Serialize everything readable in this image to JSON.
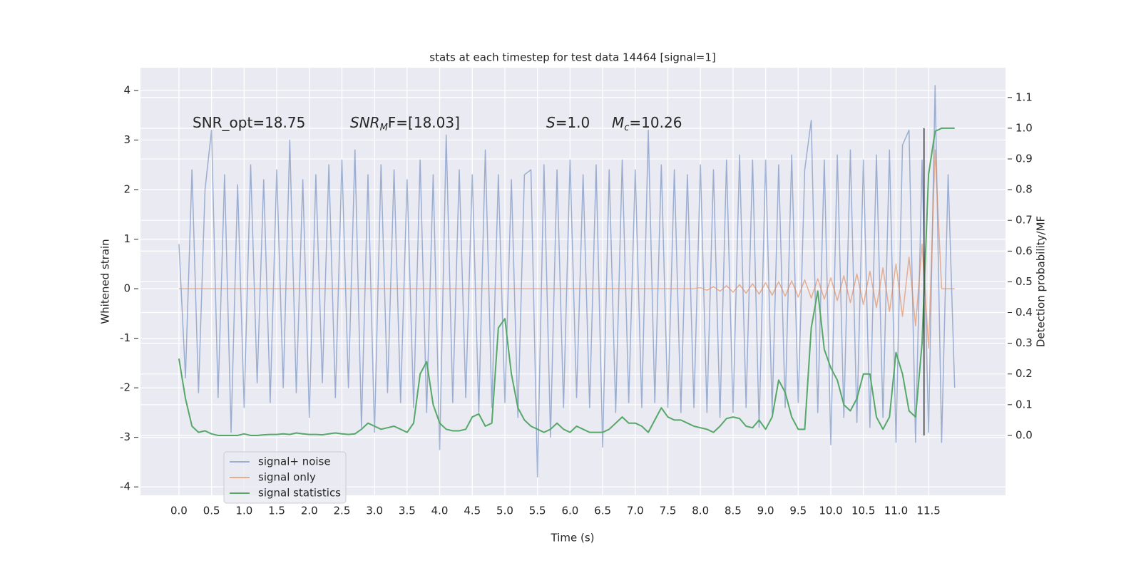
{
  "chart_data": {
    "type": "line",
    "title": "stats at each timestep for test data 14464 [signal=1]",
    "xlabel": "Time (s)",
    "ylabel": "Whitened strain",
    "y2label": "Detection probability/MF",
    "x": [
      0.0,
      0.1,
      0.2,
      0.3,
      0.4,
      0.5,
      0.6,
      0.7,
      0.8,
      0.9,
      1.0,
      1.1,
      1.2,
      1.3,
      1.4,
      1.5,
      1.6,
      1.7,
      1.8,
      1.9,
      2.0,
      2.1,
      2.2,
      2.3,
      2.4,
      2.5,
      2.6,
      2.7,
      2.8,
      2.9,
      3.0,
      3.1,
      3.2,
      3.3,
      3.4,
      3.5,
      3.6,
      3.7,
      3.8,
      3.9,
      4.0,
      4.1,
      4.2,
      4.3,
      4.4,
      4.5,
      4.6,
      4.7,
      4.8,
      4.9,
      5.0,
      5.1,
      5.2,
      5.3,
      5.4,
      5.5,
      5.6,
      5.7,
      5.8,
      5.9,
      6.0,
      6.1,
      6.2,
      6.3,
      6.4,
      6.5,
      6.6,
      6.7,
      6.8,
      6.9,
      7.0,
      7.1,
      7.2,
      7.3,
      7.4,
      7.5,
      7.6,
      7.7,
      7.8,
      7.9,
      8.0,
      8.1,
      8.2,
      8.3,
      8.4,
      8.5,
      8.6,
      8.7,
      8.8,
      8.9,
      9.0,
      9.1,
      9.2,
      9.3,
      9.4,
      9.5,
      9.6,
      9.7,
      9.8,
      9.9,
      10.0,
      10.1,
      10.2,
      10.3,
      10.4,
      10.5,
      10.6,
      10.7,
      10.8,
      10.9,
      11.0,
      11.1,
      11.2,
      11.3,
      11.4,
      11.5,
      11.6,
      11.7,
      11.8,
      11.9
    ],
    "series": [
      {
        "name": "signal+ noise",
        "color": "#4c72b0",
        "opacity": 0.5,
        "axis": "y",
        "values": [
          0.9,
          -1.8,
          2.4,
          -2.1,
          2.0,
          3.2,
          -2.2,
          2.3,
          -2.9,
          2.1,
          -2.4,
          2.5,
          -1.9,
          2.2,
          -2.3,
          2.4,
          -2.0,
          3.0,
          -2.1,
          2.2,
          -2.6,
          2.3,
          -1.9,
          2.5,
          -2.2,
          2.6,
          -2.0,
          2.8,
          -2.8,
          2.3,
          -2.9,
          2.5,
          -2.1,
          2.4,
          -2.3,
          2.2,
          -2.4,
          2.6,
          -2.5,
          2.3,
          -3.25,
          3.1,
          -2.3,
          2.4,
          -2.2,
          2.3,
          -2.5,
          2.8,
          -2.4,
          2.3,
          -2.3,
          2.2,
          -2.6,
          2.3,
          2.4,
          -3.8,
          2.5,
          -3.0,
          2.4,
          -2.4,
          2.6,
          -2.2,
          2.3,
          -2.4,
          2.5,
          -3.2,
          2.4,
          -2.5,
          2.6,
          -2.3,
          2.4,
          -2.4,
          3.2,
          -2.3,
          2.5,
          -2.4,
          2.4,
          -2.5,
          2.3,
          -2.4,
          2.5,
          -2.5,
          2.4,
          -2.6,
          2.6,
          -2.5,
          2.7,
          -2.4,
          2.6,
          -2.8,
          2.6,
          -2.5,
          2.5,
          -2.4,
          2.7,
          -2.3,
          2.4,
          3.4,
          -2.5,
          2.6,
          -3.15,
          2.7,
          -2.6,
          2.8,
          -2.7,
          2.6,
          -2.8,
          2.7,
          -2.6,
          2.8,
          -3.1,
          2.9,
          3.2,
          -3.1,
          2.6,
          -2.9,
          4.1,
          -3.1,
          2.3,
          -2.0
        ]
      },
      {
        "name": "signal only",
        "color": "#dd8452",
        "opacity": 0.6,
        "axis": "y",
        "values": [
          0,
          0,
          0,
          0,
          0,
          0,
          0,
          0,
          0,
          0,
          0,
          0,
          0,
          0,
          0,
          0,
          0,
          0,
          0,
          0,
          0,
          0,
          0,
          0,
          0,
          0,
          0,
          0,
          0,
          0,
          0,
          0,
          0,
          0,
          0,
          0,
          0,
          0,
          0,
          0,
          0,
          0,
          0,
          0,
          0,
          0,
          0,
          0,
          0,
          0,
          0,
          0,
          0,
          0,
          0,
          0,
          0,
          0,
          0,
          0,
          0,
          0,
          0,
          0,
          0,
          0,
          0,
          0,
          0,
          0,
          0,
          0,
          0,
          0,
          0,
          0,
          0,
          0,
          0,
          0,
          0.02,
          -0.03,
          0.04,
          -0.05,
          0.06,
          -0.07,
          0.08,
          -0.09,
          0.1,
          -0.11,
          0.12,
          -0.13,
          0.14,
          -0.15,
          0.16,
          -0.17,
          0.18,
          -0.19,
          0.2,
          -0.21,
          0.22,
          -0.24,
          0.26,
          -0.28,
          0.3,
          -0.32,
          0.35,
          -0.38,
          0.42,
          -0.46,
          0.5,
          -0.56,
          0.64,
          -0.75,
          0.9,
          -1.2,
          2.8,
          0,
          0,
          0
        ]
      },
      {
        "name": "signal statistics",
        "color": "#55a868",
        "opacity": 1,
        "axis": "y2",
        "values": [
          0.25,
          0.12,
          0.03,
          0.01,
          0.015,
          0.005,
          0.0,
          0.0,
          0.0,
          0.0,
          0.005,
          0.0,
          0.0,
          0.002,
          0.003,
          0.003,
          0.005,
          0.003,
          0.008,
          0.005,
          0.003,
          0.003,
          0.002,
          0.005,
          0.008,
          0.005,
          0.003,
          0.005,
          0.02,
          0.04,
          0.03,
          0.02,
          0.025,
          0.03,
          0.02,
          0.01,
          0.04,
          0.2,
          0.24,
          0.1,
          0.04,
          0.02,
          0.015,
          0.015,
          0.02,
          0.06,
          0.07,
          0.03,
          0.04,
          0.35,
          0.38,
          0.2,
          0.09,
          0.05,
          0.03,
          0.02,
          0.01,
          0.02,
          0.04,
          0.02,
          0.01,
          0.03,
          0.02,
          0.01,
          0.01,
          0.01,
          0.02,
          0.04,
          0.06,
          0.04,
          0.04,
          0.03,
          0.01,
          0.05,
          0.09,
          0.06,
          0.05,
          0.05,
          0.04,
          0.03,
          0.025,
          0.02,
          0.01,
          0.03,
          0.055,
          0.06,
          0.055,
          0.03,
          0.025,
          0.05,
          0.02,
          0.06,
          0.18,
          0.14,
          0.06,
          0.02,
          0.02,
          0.35,
          0.47,
          0.28,
          0.22,
          0.18,
          0.1,
          0.08,
          0.12,
          0.2,
          0.2,
          0.06,
          0.02,
          0.06,
          0.27,
          0.2,
          0.08,
          0.06,
          0.3,
          0.85,
          0.99,
          1.0,
          1.0,
          1.0
        ]
      }
    ],
    "vline": {
      "x": 11.43,
      "range": [
        0,
        1.0
      ],
      "color": "#333333"
    },
    "annotations": [
      {
        "tail": "SNR_opt=18.75"
      },
      {
        "base": "SNR",
        "sub": "M",
        "tail": "F=[18.03]"
      },
      {
        "base": "S",
        "tail": "=1.0"
      },
      {
        "base": "M",
        "sub": "c",
        "tail": "=10.26"
      }
    ],
    "xlim": [
      -0.59,
      12.68
    ],
    "ylim": [
      -4.17,
      4.46
    ],
    "y2lim": [
      -0.195,
      1.197
    ],
    "xticks": [
      {
        "value": 0,
        "label": "0.0"
      },
      0.5,
      {
        "value": 1,
        "label": "1.0"
      },
      1.5,
      {
        "value": 2,
        "label": "2.0"
      },
      2.5,
      {
        "value": 3,
        "label": "3.0"
      },
      3.5,
      {
        "value": 4,
        "label": "4.0"
      },
      4.5,
      {
        "value": 5,
        "label": "5.0"
      },
      5.5,
      {
        "value": 6,
        "label": "6.0"
      },
      6.5,
      {
        "value": 7,
        "label": "7.0"
      },
      7.5,
      {
        "value": 8,
        "label": "8.0"
      },
      8.5,
      {
        "value": 9,
        "label": "9.0"
      },
      9.5,
      {
        "value": 10,
        "label": "10.0"
      },
      10.5,
      {
        "value": 11,
        "label": "11.0"
      },
      11.5
    ],
    "yticks": [
      -4,
      -3,
      -2,
      -1,
      0,
      1,
      2,
      3,
      4
    ],
    "y2ticks": [
      {
        "value": 0,
        "label": "0.0"
      },
      0.1,
      0.2,
      0.3,
      0.4,
      0.5,
      0.6,
      0.7,
      0.8,
      0.9,
      {
        "value": 1,
        "label": "1.0"
      },
      1.1
    ],
    "grid": true,
    "legend": "lower left"
  }
}
